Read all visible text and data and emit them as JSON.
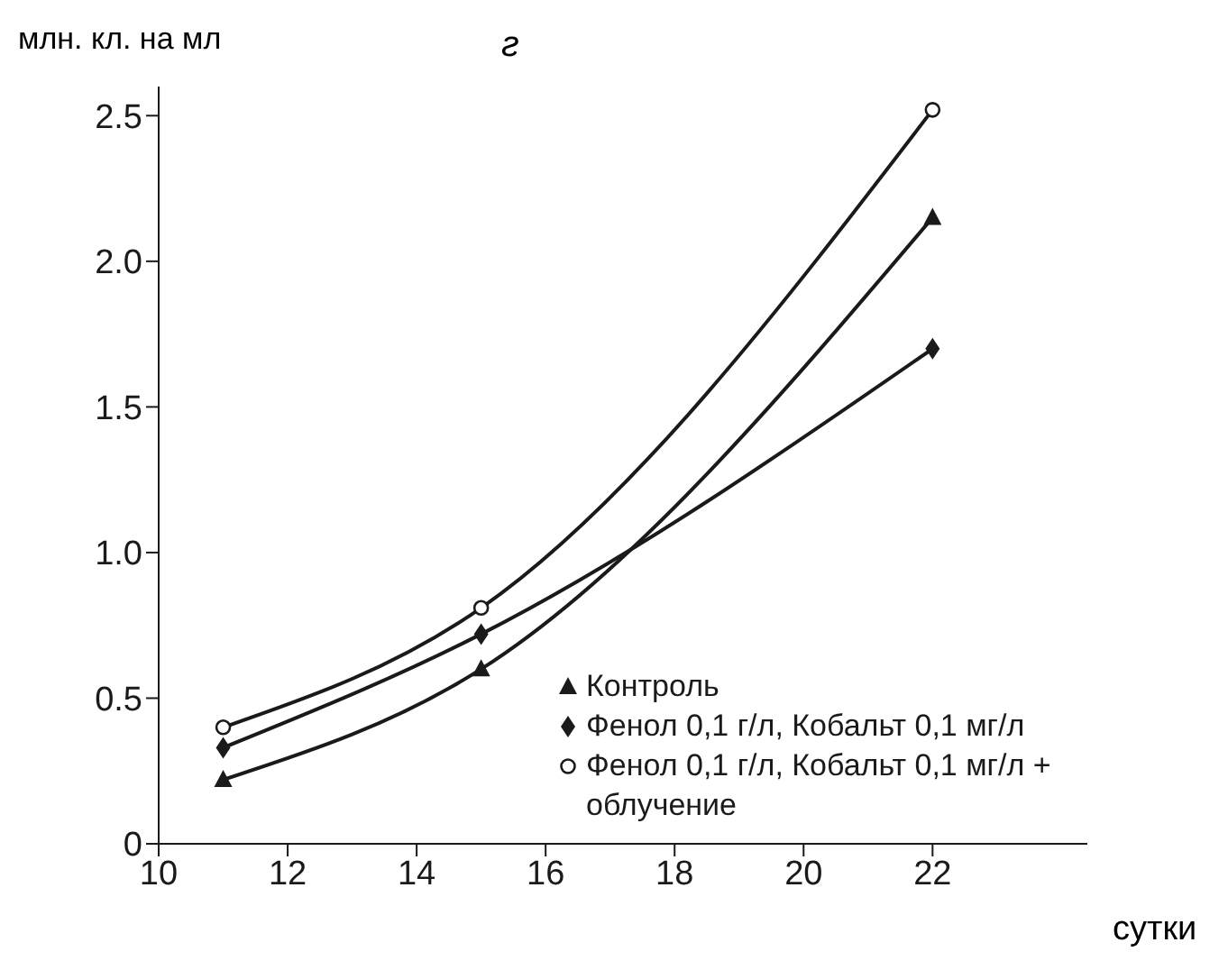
{
  "chart_data": {
    "type": "line",
    "title": "г",
    "ylabel": "млн. кл. на мл",
    "xlabel": "сутки",
    "x": [
      11,
      15,
      22
    ],
    "series": [
      {
        "name": "Контроль",
        "color": "#1a1a1a",
        "marker": "triangle",
        "values": [
          0.22,
          0.6,
          2.15
        ]
      },
      {
        "name": "Фенол 0,1 г/л, Кобальт 0,1 мг/л",
        "color": "#1a1a1a",
        "marker": "diamond",
        "values": [
          0.33,
          0.72,
          1.7
        ]
      },
      {
        "name": "Фенол 0,1 г/л, Кобальт 0,1 мг/л + облучение",
        "color": "#1a1a1a",
        "marker": "circle",
        "values": [
          0.4,
          0.81,
          2.52
        ]
      }
    ],
    "xlim": [
      10,
      24.4
    ],
    "xticks": [
      10,
      12,
      14,
      16,
      18,
      20,
      22
    ],
    "ylim": [
      0,
      2.6
    ],
    "yticks": [
      0,
      0.5,
      {
        "value": 1,
        "label": "1.0"
      },
      1.5,
      {
        "value": 2,
        "label": "2.0"
      },
      2.5
    ],
    "grid": false,
    "legend": "bottom right",
    "line_style": "solid"
  }
}
